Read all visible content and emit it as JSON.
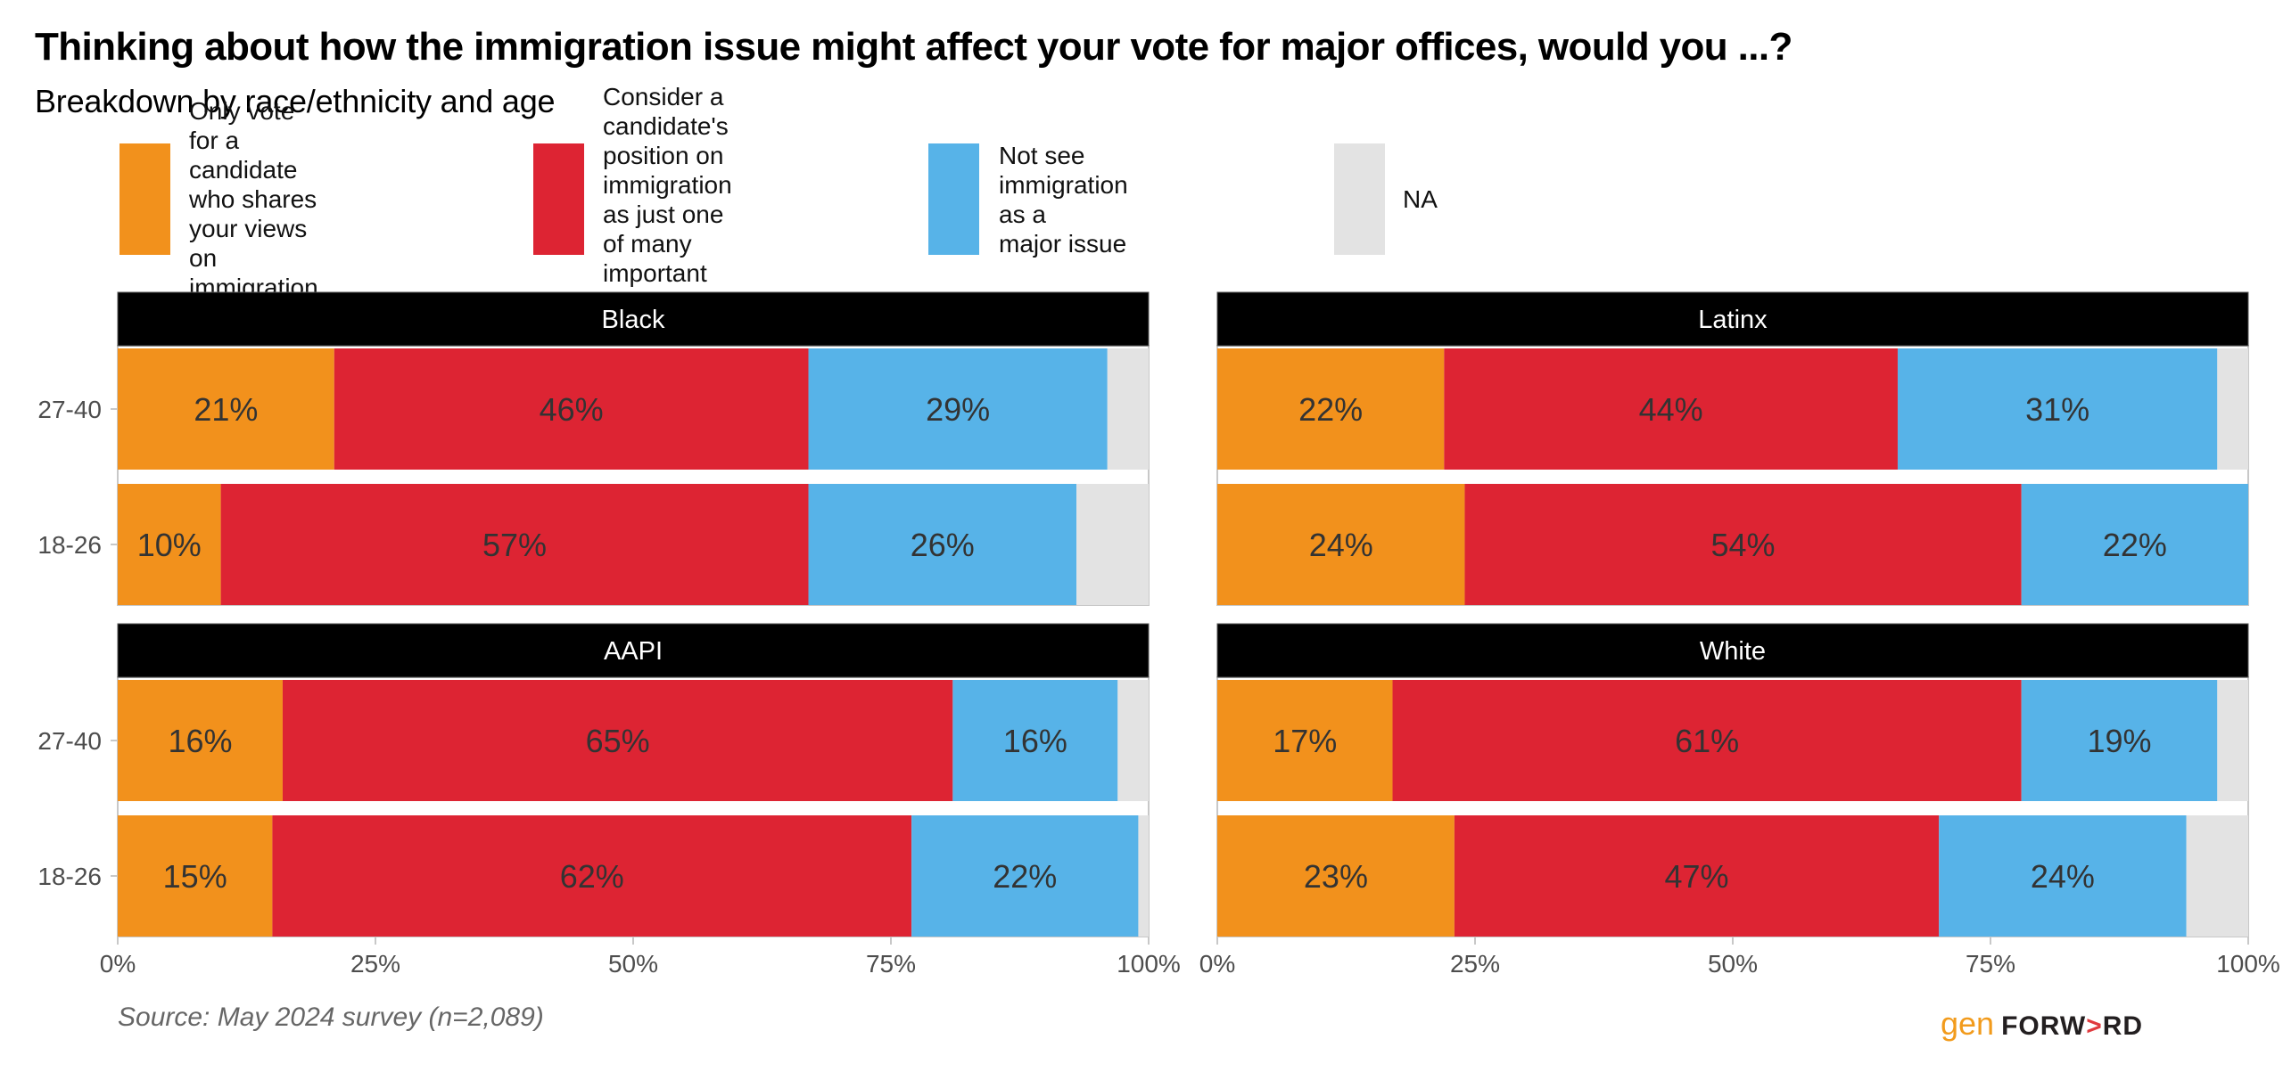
{
  "header": {
    "title": "Thinking about how the immigration issue might affect your vote for major offices, would you ...?",
    "subtitle": "Breakdown by race/ethnicity and age"
  },
  "legend": {
    "items": [
      {
        "key": "only_vote",
        "label": "Only vote for a candidate\nwho shares your views on\nimmigration",
        "color": "#f2911c"
      },
      {
        "key": "consider",
        "label": "Consider a candidate's\nposition on immigration\nas just one of many\nimportant factors",
        "color": "#dd2433"
      },
      {
        "key": "not_major",
        "label": "Not see immigration as a\nmajor issue",
        "color": "#57b3e8"
      },
      {
        "key": "na",
        "label": "NA",
        "color": "#e3e3e3"
      }
    ]
  },
  "chart_data": {
    "type": "bar",
    "orientation": "horizontal",
    "stacked": true,
    "title": "Thinking about how the immigration issue might affect your vote for major offices, would you ...?",
    "subtitle": "Breakdown by race/ethnicity and age",
    "xlabel": "",
    "ylabel": "",
    "xlim": [
      0,
      100
    ],
    "x_ticks": [
      "0%",
      "25%",
      "50%",
      "75%",
      "100%"
    ],
    "x_tick_values": [
      0,
      25,
      50,
      75,
      100
    ],
    "legend_position": "top",
    "grid": false,
    "series_names": [
      "Only vote for a candidate who shares your views on immigration",
      "Consider a candidate's position on immigration as just one of many important factors",
      "Not see immigration as a major issue",
      "NA"
    ],
    "series_colors": [
      "#f2911c",
      "#dd2433",
      "#57b3e8",
      "#e3e3e3"
    ],
    "facets": [
      {
        "name": "Black",
        "categories": [
          "27-40",
          "18-26"
        ],
        "rows": [
          {
            "age": "27-40",
            "values": [
              21,
              46,
              29,
              4
            ],
            "labels": [
              "21%",
              "46%",
              "29%",
              ""
            ]
          },
          {
            "age": "18-26",
            "values": [
              10,
              57,
              26,
              7
            ],
            "labels": [
              "10%",
              "57%",
              "26%",
              ""
            ]
          }
        ]
      },
      {
        "name": "Latinx",
        "categories": [
          "27-40",
          "18-26"
        ],
        "rows": [
          {
            "age": "27-40",
            "values": [
              22,
              44,
              31,
              3
            ],
            "labels": [
              "22%",
              "44%",
              "31%",
              ""
            ]
          },
          {
            "age": "18-26",
            "values": [
              24,
              54,
              22,
              0
            ],
            "labels": [
              "24%",
              "54%",
              "22%",
              ""
            ]
          }
        ]
      },
      {
        "name": "AAPI",
        "categories": [
          "27-40",
          "18-26"
        ],
        "rows": [
          {
            "age": "27-40",
            "values": [
              16,
              65,
              16,
              3
            ],
            "labels": [
              "16%",
              "65%",
              "16%",
              ""
            ]
          },
          {
            "age": "18-26",
            "values": [
              15,
              62,
              22,
              1
            ],
            "labels": [
              "15%",
              "62%",
              "22%",
              ""
            ]
          }
        ]
      },
      {
        "name": "White",
        "categories": [
          "27-40",
          "18-26"
        ],
        "rows": [
          {
            "age": "27-40",
            "values": [
              17,
              61,
              19,
              3
            ],
            "labels": [
              "17%",
              "61%",
              "19%",
              ""
            ]
          },
          {
            "age": "18-26",
            "values": [
              23,
              47,
              24,
              6
            ],
            "labels": [
              "23%",
              "47%",
              "24%",
              ""
            ]
          }
        ]
      }
    ]
  },
  "footer": {
    "source": "Source: May 2024 survey (n=2,089)",
    "logo_gen": "gen",
    "logo_forward_pre": "FORW",
    "logo_forward_arrow": ">",
    "logo_forward_post": "RD"
  }
}
